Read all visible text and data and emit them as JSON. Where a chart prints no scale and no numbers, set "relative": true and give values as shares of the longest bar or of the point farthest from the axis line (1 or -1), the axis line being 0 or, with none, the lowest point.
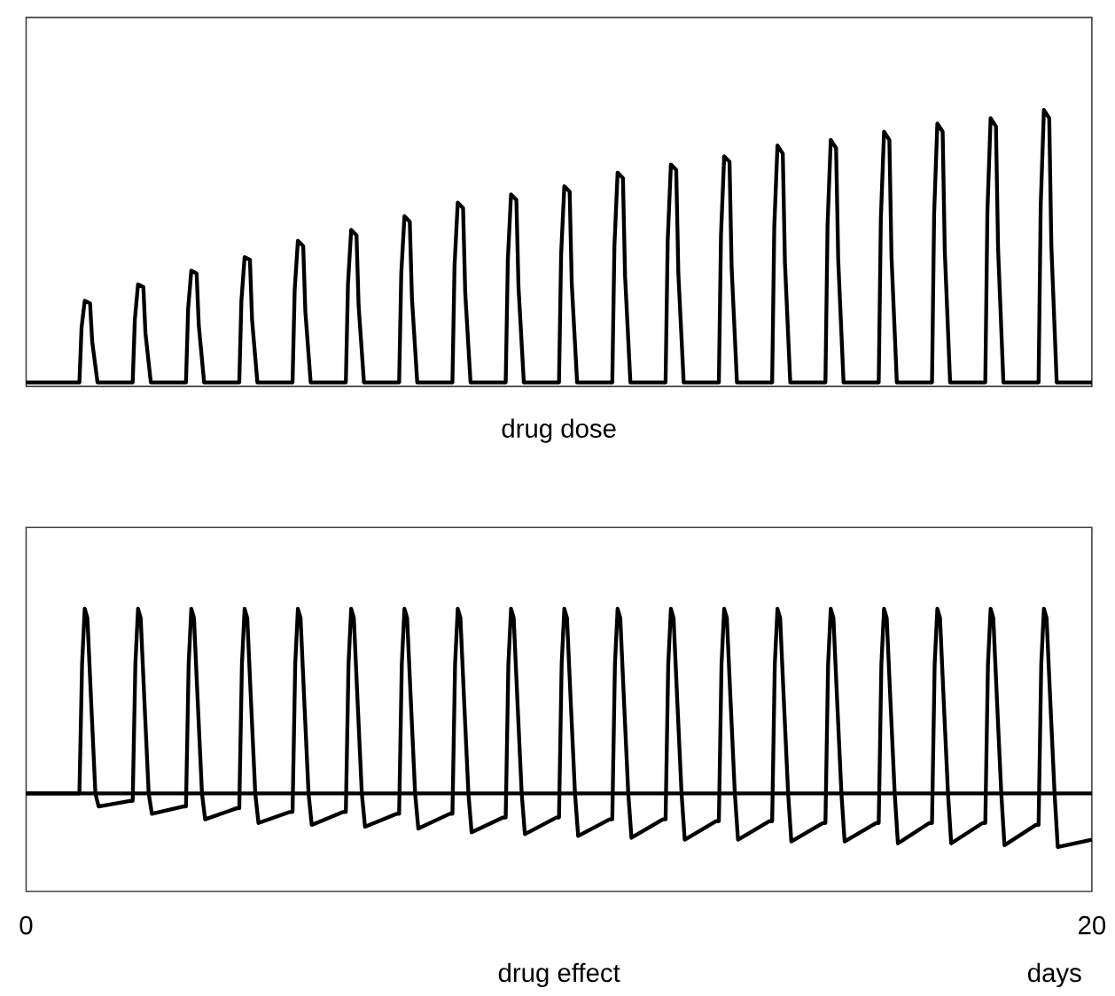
{
  "chart_data": [
    {
      "type": "line",
      "xlabel": "drug dose",
      "relative": true,
      "tick_labels": false,
      "xlim": [
        0,
        20
      ],
      "grid": false,
      "series": [
        {
          "color": "#000000",
          "x": [
            0,
            1,
            1.04,
            1.1,
            1.2,
            1.24,
            1.34,
            2,
            2.04,
            2.1,
            2.2,
            2.24,
            2.34,
            3,
            3.04,
            3.1,
            3.2,
            3.24,
            3.34,
            4,
            4.04,
            4.1,
            4.2,
            4.24,
            4.34,
            5,
            5.04,
            5.1,
            5.2,
            5.24,
            5.34,
            6,
            6.04,
            6.1,
            6.2,
            6.24,
            6.34,
            7,
            7.04,
            7.1,
            7.2,
            7.24,
            7.34,
            8,
            8.04,
            8.1,
            8.2,
            8.24,
            8.34,
            9,
            9.04,
            9.1,
            9.2,
            9.24,
            9.34,
            10,
            10.04,
            10.1,
            10.2,
            10.24,
            10.34,
            11,
            11.04,
            11.1,
            11.2,
            11.24,
            11.34,
            12,
            12.04,
            12.1,
            12.2,
            12.24,
            12.34,
            13,
            13.04,
            13.1,
            13.2,
            13.24,
            13.34,
            14,
            14.04,
            14.1,
            14.2,
            14.24,
            14.34,
            15,
            15.04,
            15.1,
            15.2,
            15.24,
            15.34,
            16,
            16.04,
            16.1,
            16.2,
            16.24,
            16.34,
            17,
            17.04,
            17.1,
            17.2,
            17.24,
            17.34,
            18,
            18.04,
            18.1,
            18.2,
            18.24,
            18.34,
            19,
            19.04,
            19.1,
            19.2,
            19.24,
            19.34,
            20
          ],
          "values": [
            0,
            0,
            0.2,
            0.3,
            0.29,
            0.15,
            0,
            0,
            0.23,
            0.36,
            0.35,
            0.18,
            0,
            0,
            0.27,
            0.41,
            0.4,
            0.21,
            0,
            0,
            0.3,
            0.46,
            0.45,
            0.23,
            0,
            0,
            0.34,
            0.52,
            0.5,
            0.26,
            0,
            0,
            0.36,
            0.56,
            0.54,
            0.28,
            0,
            0,
            0.4,
            0.61,
            0.59,
            0.31,
            0,
            0,
            0.43,
            0.66,
            0.64,
            0.33,
            0,
            0,
            0.45,
            0.69,
            0.67,
            0.35,
            0,
            0,
            0.47,
            0.72,
            0.7,
            0.36,
            0,
            0,
            0.5,
            0.77,
            0.75,
            0.39,
            0,
            0,
            0.52,
            0.8,
            0.78,
            0.4,
            0,
            0,
            0.54,
            0.83,
            0.81,
            0.42,
            0,
            0,
            0.57,
            0.87,
            0.84,
            0.44,
            0,
            0,
            0.58,
            0.89,
            0.86,
            0.45,
            0,
            0,
            0.6,
            0.92,
            0.89,
            0.46,
            0,
            0,
            0.62,
            0.95,
            0.92,
            0.48,
            0,
            0,
            0.63,
            0.97,
            0.94,
            0.49,
            0,
            0,
            0.65,
            1,
            0.97,
            0.5,
            0,
            0
          ]
        }
      ]
    },
    {
      "type": "line",
      "xlabel": "drug effect",
      "relative": true,
      "tick_labels": "x",
      "xlim": [
        0,
        20
      ],
      "xticks": [
        0,
        20
      ],
      "grid": false,
      "annotations": [
        "days"
      ],
      "ref_lines": [
        {
          "axis": "y",
          "value": 0,
          "color": "#000000"
        }
      ],
      "series": [
        {
          "color": "#000000",
          "x": [
            0,
            1,
            1.05,
            1.1,
            1.15,
            1.22,
            1.3,
            1.36,
            1.95,
            2,
            2.05,
            2.1,
            2.15,
            2.22,
            2.3,
            2.36,
            2.95,
            3,
            3.05,
            3.1,
            3.15,
            3.22,
            3.3,
            3.36,
            3.95,
            4,
            4.05,
            4.1,
            4.15,
            4.22,
            4.3,
            4.36,
            4.95,
            5,
            5.05,
            5.1,
            5.15,
            5.22,
            5.3,
            5.36,
            5.95,
            6,
            6.05,
            6.1,
            6.15,
            6.22,
            6.3,
            6.36,
            6.95,
            7,
            7.05,
            7.1,
            7.15,
            7.22,
            7.3,
            7.36,
            7.95,
            8,
            8.05,
            8.1,
            8.15,
            8.22,
            8.3,
            8.36,
            8.95,
            9,
            9.05,
            9.1,
            9.15,
            9.22,
            9.3,
            9.36,
            9.95,
            10,
            10.05,
            10.1,
            10.15,
            10.22,
            10.3,
            10.36,
            10.95,
            11,
            11.05,
            11.1,
            11.15,
            11.22,
            11.3,
            11.36,
            11.95,
            12,
            12.05,
            12.1,
            12.15,
            12.22,
            12.3,
            12.36,
            12.95,
            13,
            13.05,
            13.1,
            13.15,
            13.22,
            13.3,
            13.36,
            13.95,
            14,
            14.05,
            14.1,
            14.15,
            14.22,
            14.3,
            14.36,
            14.95,
            15,
            15.05,
            15.1,
            15.15,
            15.22,
            15.3,
            15.36,
            15.95,
            16,
            16.05,
            16.1,
            16.15,
            16.22,
            16.3,
            16.36,
            16.95,
            17,
            17.05,
            17.1,
            17.15,
            17.22,
            17.3,
            17.36,
            17.95,
            18,
            18.05,
            18.1,
            18.15,
            18.22,
            18.3,
            18.36,
            18.95,
            19,
            19.05,
            19.1,
            19.15,
            19.22,
            19.3,
            19.36,
            20
          ],
          "values": [
            0,
            0,
            0.7,
            1,
            0.95,
            0.5,
            0,
            -0.07,
            -0.04,
            -0.04,
            0.7,
            1,
            0.95,
            0.5,
            0,
            -0.11,
            -0.07,
            -0.07,
            0.7,
            1,
            0.95,
            0.5,
            0,
            -0.14,
            -0.08,
            -0.08,
            0.7,
            1,
            0.95,
            0.5,
            0,
            -0.16,
            -0.1,
            -0.1,
            0.7,
            1,
            0.95,
            0.5,
            0,
            -0.17,
            -0.1,
            -0.1,
            0.7,
            1,
            0.95,
            0.5,
            0,
            -0.18,
            -0.11,
            -0.11,
            0.7,
            1,
            0.95,
            0.5,
            0,
            -0.19,
            -0.11,
            -0.11,
            0.7,
            1,
            0.95,
            0.5,
            0,
            -0.21,
            -0.13,
            -0.13,
            0.7,
            1,
            0.95,
            0.5,
            0,
            -0.22,
            -0.13,
            -0.13,
            0.7,
            1,
            0.95,
            0.5,
            0,
            -0.23,
            -0.14,
            -0.14,
            0.7,
            1,
            0.95,
            0.5,
            0,
            -0.24,
            -0.14,
            -0.14,
            0.7,
            1,
            0.95,
            0.5,
            0,
            -0.25,
            -0.15,
            -0.15,
            0.7,
            1,
            0.95,
            0.5,
            0,
            -0.25,
            -0.15,
            -0.15,
            0.7,
            1,
            0.95,
            0.5,
            0,
            -0.26,
            -0.16,
            -0.16,
            0.7,
            1,
            0.95,
            0.5,
            0,
            -0.26,
            -0.16,
            -0.16,
            0.7,
            1,
            0.95,
            0.5,
            0,
            -0.27,
            -0.16,
            -0.16,
            0.7,
            1,
            0.95,
            0.5,
            0,
            -0.27,
            -0.16,
            -0.16,
            0.7,
            1,
            0.95,
            0.5,
            0,
            -0.28,
            -0.17,
            -0.17,
            0.7,
            1,
            0.95,
            0.5,
            0,
            -0.29,
            -0.25
          ]
        }
      ]
    }
  ]
}
